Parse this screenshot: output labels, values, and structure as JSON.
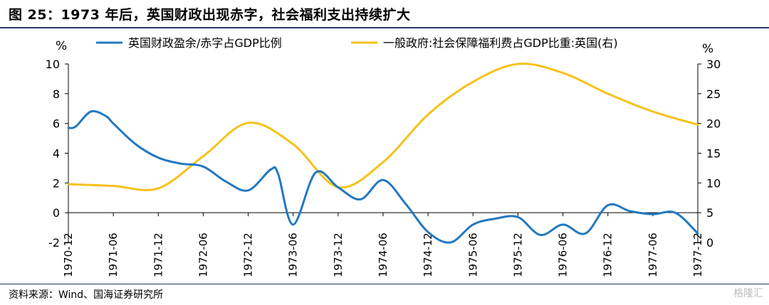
{
  "title": "图 25：1973 年后，英国财政出现赤字，社会福利支出持续扩大",
  "source": "资料来源：Wind、国海证券研究所",
  "watermark": "格隆汇",
  "chart_data": {
    "type": "line",
    "left_unit": "%",
    "right_unit": "%",
    "x_tick_labels": [
      "1970-12",
      "1971-06",
      "1971-12",
      "1972-06",
      "1972-12",
      "1973-06",
      "1973-12",
      "1974-06",
      "1974-12",
      "1975-06",
      "1975-12",
      "1976-06",
      "1976-12",
      "1977-06",
      "1977-12"
    ],
    "left_axis": {
      "ylim": [
        -2,
        10
      ],
      "ticks": [
        -2,
        0,
        2,
        4,
        6,
        8,
        10
      ]
    },
    "right_axis": {
      "ylim": [
        0,
        30
      ],
      "ticks": [
        0,
        5,
        10,
        15,
        20,
        25,
        30
      ]
    },
    "series": [
      {
        "name": "英国财政盈余/赤字占GDP比例",
        "axis": "left",
        "color": "#2378c0",
        "points": [
          [
            "1970-12",
            5.7
          ],
          [
            "1971-01",
            5.8
          ],
          [
            "1971-03",
            6.8
          ],
          [
            "1971-05",
            6.5
          ],
          [
            "1971-06",
            6.0
          ],
          [
            "1971-09",
            4.6
          ],
          [
            "1971-12",
            3.7
          ],
          [
            "1972-03",
            3.3
          ],
          [
            "1972-06",
            3.1
          ],
          [
            "1972-09",
            2.1
          ],
          [
            "1972-12",
            1.5
          ],
          [
            "1973-03",
            2.9
          ],
          [
            "1973-04",
            2.6
          ],
          [
            "1973-06",
            -0.8
          ],
          [
            "1973-09",
            2.7
          ],
          [
            "1973-12",
            1.7
          ],
          [
            "1974-03",
            0.9
          ],
          [
            "1974-06",
            2.2
          ],
          [
            "1974-09",
            0.6
          ],
          [
            "1974-12",
            -1.3
          ],
          [
            "1975-03",
            -2.0
          ],
          [
            "1975-06",
            -0.8
          ],
          [
            "1975-09",
            -0.4
          ],
          [
            "1975-12",
            -0.3
          ],
          [
            "1976-03",
            -1.5
          ],
          [
            "1976-06",
            -0.8
          ],
          [
            "1976-09",
            -1.4
          ],
          [
            "1976-12",
            0.5
          ],
          [
            "1977-03",
            0.1
          ],
          [
            "1977-06",
            -0.1
          ],
          [
            "1977-09",
            0.0
          ],
          [
            "1977-12",
            -1.4
          ]
        ]
      },
      {
        "name": "一般政府:社会保障福利费占GDP比重:英国(右)",
        "axis": "right",
        "color": "#f6c21a",
        "points": [
          [
            "1970-12",
            9.8
          ],
          [
            "1971-06",
            9.5
          ],
          [
            "1971-12",
            9.1
          ],
          [
            "1972-06",
            14.5
          ],
          [
            "1972-12",
            20.1
          ],
          [
            "1973-06",
            16.5
          ],
          [
            "1973-12",
            9.3
          ],
          [
            "1974-06",
            13.5
          ],
          [
            "1974-12",
            21.5
          ],
          [
            "1975-06",
            27.0
          ],
          [
            "1975-12",
            30.0
          ],
          [
            "1976-06",
            28.5
          ],
          [
            "1976-12",
            25.0
          ],
          [
            "1977-06",
            22.0
          ],
          [
            "1977-12",
            19.8
          ]
        ]
      }
    ]
  }
}
